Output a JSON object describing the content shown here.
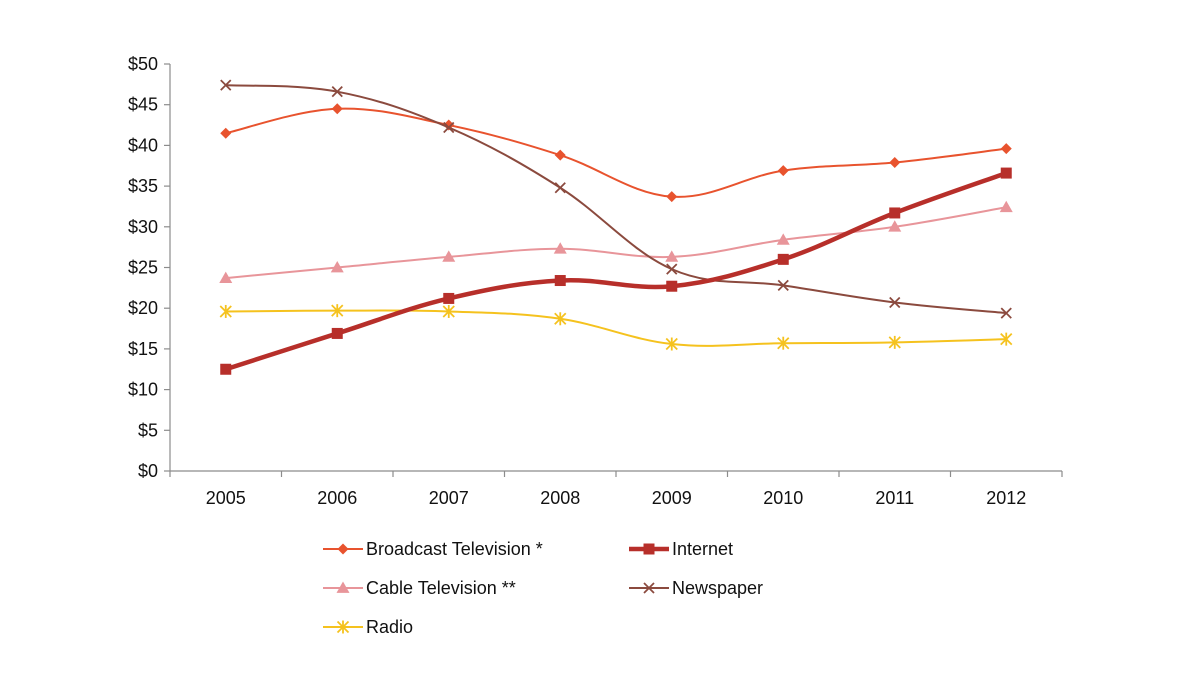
{
  "chart_data": {
    "type": "line",
    "categories": [
      "2005",
      "2006",
      "2007",
      "2008",
      "2009",
      "2010",
      "2011",
      "2012"
    ],
    "y_tick_labels": [
      "$0",
      "$5",
      "$10",
      "$15",
      "$20",
      "$25",
      "$30",
      "$35",
      "$40",
      "$45",
      "$50"
    ],
    "ylim": [
      0,
      50
    ],
    "grid": false,
    "legend_position": "bottom",
    "series": [
      {
        "name": "Broadcast Television *",
        "color": "#e8532e",
        "marker": "diamond",
        "values": [
          41.5,
          44.5,
          42.5,
          38.8,
          33.7,
          36.9,
          37.9,
          39.6
        ]
      },
      {
        "name": "Internet",
        "color": "#b72f2a",
        "marker": "square",
        "values": [
          12.5,
          16.9,
          21.2,
          23.4,
          22.7,
          26.0,
          31.7,
          36.6
        ]
      },
      {
        "name": "Cable Television **",
        "color": "#e8959a",
        "marker": "triangle",
        "values": [
          23.7,
          25.0,
          26.3,
          27.3,
          26.3,
          28.4,
          30.0,
          32.4
        ]
      },
      {
        "name": "Newspaper",
        "color": "#8b4a3e",
        "marker": "x",
        "values": [
          47.4,
          46.6,
          42.2,
          34.8,
          24.8,
          22.8,
          20.7,
          19.4
        ]
      },
      {
        "name": "Radio",
        "color": "#f5c21e",
        "marker": "star",
        "values": [
          19.6,
          19.7,
          19.6,
          18.7,
          15.6,
          15.7,
          15.8,
          16.2
        ]
      }
    ]
  }
}
